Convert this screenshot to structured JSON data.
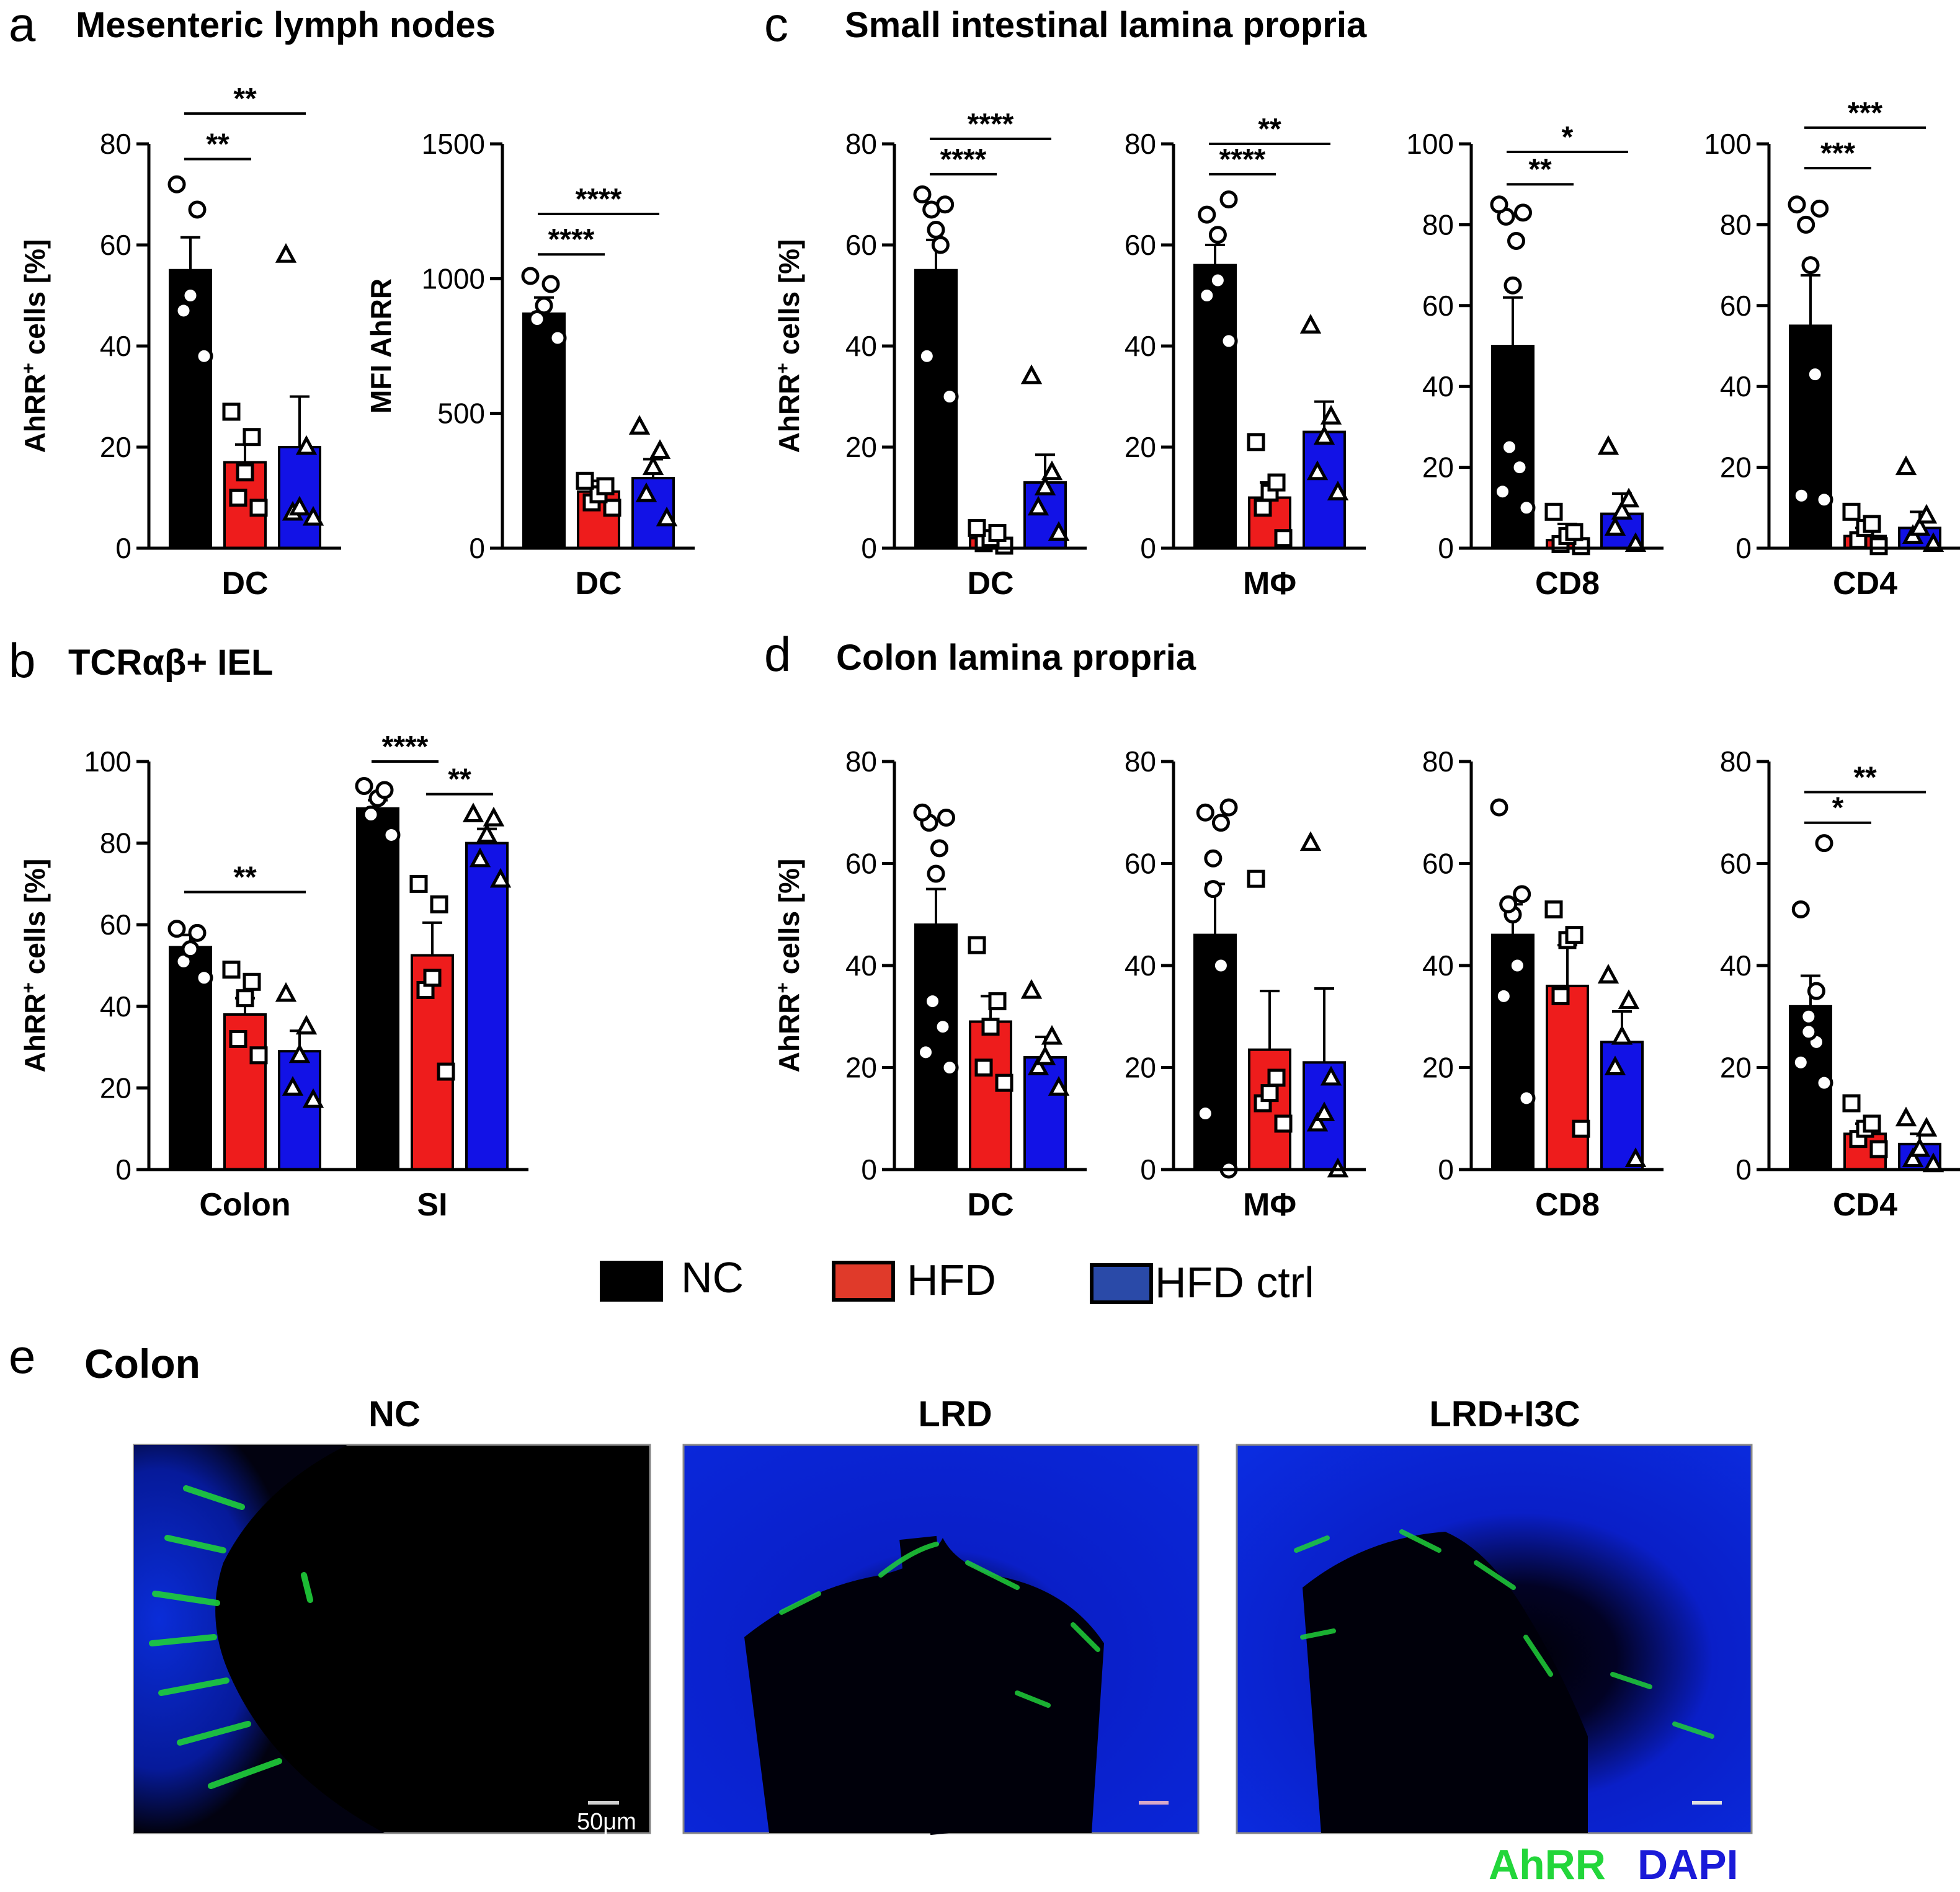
{
  "colors": {
    "NC": "#000000",
    "HFD": "#ee1c1c",
    "HFD_ctrl": "#1212e6",
    "AhRR": "#22d63a",
    "DAPI": "#1a1ad8",
    "background": "#ffffff"
  },
  "panels": {
    "a": {
      "letter": "a",
      "title": "Mesenteric lymph nodes"
    },
    "b": {
      "letter": "b",
      "title": "TCRαβ+ IEL"
    },
    "c": {
      "letter": "c",
      "title": "Small intestinal lamina propria"
    },
    "d": {
      "letter": "d",
      "title": "Colon lamina propria"
    },
    "e": {
      "letter": "e",
      "title": "Colon"
    }
  },
  "legend": [
    {
      "label": "NC",
      "color": "#000000"
    },
    {
      "label": "HFD",
      "color": "#e03a2a"
    },
    {
      "label": "HFD ctrl",
      "color": "#2a4aa8"
    }
  ],
  "micrographs": {
    "titles": [
      "NC",
      "LRD",
      "LRD+I3C"
    ],
    "scale_bar": "50μm",
    "stain_labels": {
      "green": "AhRR",
      "blue": "DAPI"
    }
  },
  "chart_data": [
    {
      "id": "a1",
      "type": "bar",
      "panel": "a",
      "ylabel": "AhRR+ cells [%]",
      "ylim": [
        0,
        80
      ],
      "yticks": [
        "0",
        "20",
        "40",
        "60",
        "80"
      ],
      "groups": [
        {
          "label": "DC",
          "bars": [
            {
              "series": "NC",
              "mean": 55,
              "sem": 6.5,
              "points": [
                38,
                47,
                50,
                67,
                72
              ]
            },
            {
              "series": "HFD",
              "mean": 17,
              "sem": 3.5,
              "points": [
                8,
                10,
                15,
                22,
                27
              ]
            },
            {
              "series": "HFD ctrl",
              "mean": 20,
              "sem": 10,
              "points": [
                6,
                7,
                8,
                20,
                58
              ]
            }
          ]
        }
      ],
      "significance": [
        {
          "text": "**",
          "from": [
            0,
            0
          ],
          "to": [
            0,
            2
          ],
          "y": 86
        },
        {
          "text": "**",
          "from": [
            0,
            0
          ],
          "to": [
            0,
            1
          ],
          "y": 77
        }
      ]
    },
    {
      "id": "a2",
      "type": "bar",
      "panel": "a",
      "ylabel": "MFI AhRR",
      "ylim": [
        0,
        1500
      ],
      "yticks": [
        "0",
        "500",
        "1000",
        "1500"
      ],
      "groups": [
        {
          "label": "DC",
          "bars": [
            {
              "series": "NC",
              "mean": 870,
              "sem": 60,
              "points": [
                780,
                850,
                900,
                980,
                1010
              ]
            },
            {
              "series": "HFD",
              "mean": 210,
              "sem": 40,
              "points": [
                150,
                170,
                200,
                230,
                250
              ]
            },
            {
              "series": "HFD ctrl",
              "mean": 260,
              "sem": 70,
              "points": [
                110,
                200,
                300,
                360,
                450
              ]
            }
          ]
        }
      ],
      "significance": [
        {
          "text": "****",
          "from": [
            0,
            0
          ],
          "to": [
            0,
            2
          ],
          "y": 1240
        },
        {
          "text": "****",
          "from": [
            0,
            0
          ],
          "to": [
            0,
            1
          ],
          "y": 1090
        }
      ]
    },
    {
      "id": "b1",
      "type": "bar",
      "panel": "b",
      "ylabel": "AhRR+ cells [%]",
      "ylim": [
        0,
        100
      ],
      "yticks": [
        "0",
        "20",
        "40",
        "60",
        "80",
        "100"
      ],
      "groups": [
        {
          "label": "Colon",
          "bars": [
            {
              "series": "NC",
              "mean": 54.5,
              "sem": 3,
              "points": [
                47,
                51,
                54,
                58,
                59
              ]
            },
            {
              "series": "HFD",
              "mean": 38,
              "sem": 4,
              "points": [
                28,
                32,
                42,
                46,
                49
              ]
            },
            {
              "series": "HFD ctrl",
              "mean": 29,
              "sem": 5,
              "points": [
                17,
                20,
                28,
                35,
                43
              ]
            }
          ]
        },
        {
          "label": "SI",
          "bars": [
            {
              "series": "NC",
              "mean": 88.5,
              "sem": 2,
              "points": [
                82,
                87,
                91,
                93,
                94
              ]
            },
            {
              "series": "HFD",
              "mean": 52.5,
              "sem": 8,
              "points": [
                24,
                44,
                47,
                65,
                70
              ]
            },
            {
              "series": "HFD ctrl",
              "mean": 80,
              "sem": 3.5,
              "points": [
                71,
                76,
                82,
                86,
                87
              ]
            }
          ]
        }
      ],
      "significance": [
        {
          "text": "**",
          "from": [
            0,
            0
          ],
          "to": [
            0,
            2
          ],
          "y": 68
        },
        {
          "text": "****",
          "from": [
            1,
            0
          ],
          "to": [
            1,
            1
          ],
          "y": 100
        },
        {
          "text": "**",
          "from": [
            1,
            1
          ],
          "to": [
            1,
            2
          ],
          "y": 92
        }
      ]
    },
    {
      "id": "c1",
      "type": "bar",
      "panel": "c",
      "ylabel": "AhRR+ cells [%]",
      "ylim": [
        0,
        80
      ],
      "yticks": [
        "0",
        "20",
        "40",
        "60",
        "80"
      ],
      "groups": [
        {
          "label": "DC",
          "bars": [
            {
              "series": "NC",
              "mean": 55,
              "sem": 6,
              "points": [
                30,
                38,
                60,
                63,
                67,
                68,
                70
              ]
            },
            {
              "series": "HFD",
              "mean": 2,
              "sem": 1,
              "points": [
                0.5,
                1,
                2,
                3,
                4
              ]
            },
            {
              "series": "HFD ctrl",
              "mean": 13,
              "sem": 5.5,
              "points": [
                3,
                8,
                12,
                15,
                34
              ]
            }
          ]
        }
      ],
      "significance": [
        {
          "text": "****",
          "from": [
            0,
            0
          ],
          "to": [
            0,
            2
          ],
          "y": 81
        },
        {
          "text": "****",
          "from": [
            0,
            0
          ],
          "to": [
            0,
            1
          ],
          "y": 74
        }
      ]
    },
    {
      "id": "c2",
      "type": "bar",
      "panel": "c",
      "ylabel": "",
      "ylim": [
        0,
        80
      ],
      "yticks": [
        "0",
        "20",
        "40",
        "60",
        "80"
      ],
      "groups": [
        {
          "label": "MΦ",
          "bars": [
            {
              "series": "NC",
              "mean": 56,
              "sem": 4,
              "points": [
                41,
                50,
                53,
                62,
                66,
                69
              ]
            },
            {
              "series": "HFD",
              "mean": 10,
              "sem": 3,
              "points": [
                2,
                8,
                11,
                13,
                21
              ]
            },
            {
              "series": "HFD ctrl",
              "mean": 23,
              "sem": 6,
              "points": [
                11,
                15,
                22,
                26,
                44
              ]
            }
          ]
        }
      ],
      "significance": [
        {
          "text": "**",
          "from": [
            0,
            0
          ],
          "to": [
            0,
            2
          ],
          "y": 80
        },
        {
          "text": "****",
          "from": [
            0,
            0
          ],
          "to": [
            0,
            1
          ],
          "y": 74
        }
      ]
    },
    {
      "id": "c3",
      "type": "bar",
      "panel": "c",
      "ylabel": "",
      "ylim": [
        0,
        100
      ],
      "yticks": [
        "0",
        "20",
        "40",
        "60",
        "80",
        "100"
      ],
      "groups": [
        {
          "label": "CD8",
          "bars": [
            {
              "series": "NC",
              "mean": 50,
              "sem": 12,
              "points": [
                10,
                14,
                20,
                25,
                65,
                76,
                82,
                83,
                85
              ]
            },
            {
              "series": "HFD",
              "mean": 2,
              "sem": 4,
              "points": [
                0.5,
                1,
                3,
                4,
                9
              ]
            },
            {
              "series": "HFD ctrl",
              "mean": 8.5,
              "sem": 5,
              "points": [
                1,
                5,
                9,
                12,
                25
              ]
            }
          ]
        }
      ],
      "significance": [
        {
          "text": "*",
          "from": [
            0,
            0
          ],
          "to": [
            0,
            2
          ],
          "y": 98
        },
        {
          "text": "**",
          "from": [
            0,
            0
          ],
          "to": [
            0,
            1
          ],
          "y": 90
        }
      ]
    },
    {
      "id": "c4",
      "type": "bar",
      "panel": "c",
      "ylabel": "",
      "ylim": [
        0,
        100
      ],
      "yticks": [
        "0",
        "20",
        "40",
        "60",
        "80",
        "100"
      ],
      "groups": [
        {
          "label": "CD4",
          "bars": [
            {
              "series": "NC",
              "mean": 55,
              "sem": 12.5,
              "points": [
                12,
                13,
                43,
                70,
                80,
                84,
                85
              ]
            },
            {
              "series": "HFD",
              "mean": 3,
              "sem": 2,
              "points": [
                0.5,
                2,
                5,
                6,
                9
              ]
            },
            {
              "series": "HFD ctrl",
              "mean": 5,
              "sem": 4,
              "points": [
                1,
                3,
                5,
                8,
                20
              ]
            }
          ]
        }
      ],
      "significance": [
        {
          "text": "***",
          "from": [
            0,
            0
          ],
          "to": [
            0,
            2
          ],
          "y": 104
        },
        {
          "text": "***",
          "from": [
            0,
            0
          ],
          "to": [
            0,
            1
          ],
          "y": 94
        }
      ]
    },
    {
      "id": "d1",
      "type": "bar",
      "panel": "d",
      "ylabel": "AhRR+ cells [%]",
      "ylim": [
        0,
        80
      ],
      "yticks": [
        "0",
        "20",
        "40",
        "60",
        "80"
      ],
      "groups": [
        {
          "label": "DC",
          "bars": [
            {
              "series": "NC",
              "mean": 48,
              "sem": 7,
              "points": [
                20,
                23,
                28,
                33,
                58,
                63,
                68,
                69,
                70
              ]
            },
            {
              "series": "HFD",
              "mean": 29,
              "sem": 5,
              "points": [
                17,
                20,
                28,
                33,
                44
              ]
            },
            {
              "series": "HFD ctrl",
              "mean": 22,
              "sem": 4,
              "points": [
                16,
                20,
                22,
                26,
                35
              ]
            }
          ]
        }
      ],
      "significance": []
    },
    {
      "id": "d2",
      "type": "bar",
      "panel": "d",
      "ylabel": "",
      "ylim": [
        0,
        80
      ],
      "yticks": [
        "0",
        "20",
        "40",
        "60",
        "80"
      ],
      "groups": [
        {
          "label": "MΦ",
          "bars": [
            {
              "series": "NC",
              "mean": 46,
              "sem": 10,
              "points": [
                0,
                11,
                40,
                55,
                61,
                68,
                70,
                71
              ]
            },
            {
              "series": "HFD",
              "mean": 23.5,
              "sem": 11.5,
              "points": [
                9,
                13,
                15,
                18,
                57
              ]
            },
            {
              "series": "HFD ctrl",
              "mean": 21,
              "sem": 14.5,
              "points": [
                0,
                9,
                11,
                18,
                64
              ]
            }
          ]
        }
      ],
      "significance": []
    },
    {
      "id": "d3",
      "type": "bar",
      "panel": "d",
      "ylabel": "",
      "ylim": [
        0,
        80
      ],
      "yticks": [
        "0",
        "20",
        "40",
        "60",
        "80"
      ],
      "groups": [
        {
          "label": "CD8",
          "bars": [
            {
              "series": "NC",
              "mean": 46,
              "sem": 6,
              "points": [
                14,
                34,
                40,
                50,
                52,
                54,
                71
              ]
            },
            {
              "series": "HFD",
              "mean": 36,
              "sem": 8,
              "points": [
                8,
                34,
                45,
                46,
                51
              ]
            },
            {
              "series": "HFD ctrl",
              "mean": 25,
              "sem": 6,
              "points": [
                2,
                20,
                26,
                33,
                38
              ]
            }
          ]
        }
      ],
      "significance": []
    },
    {
      "id": "d4",
      "type": "bar",
      "panel": "d",
      "ylabel": "",
      "ylim": [
        0,
        80
      ],
      "yticks": [
        "0",
        "20",
        "40",
        "60",
        "80"
      ],
      "groups": [
        {
          "label": "CD4",
          "bars": [
            {
              "series": "NC",
              "mean": 32,
              "sem": 6,
              "points": [
                17,
                21,
                25,
                27,
                30,
                35,
                51,
                64
              ]
            },
            {
              "series": "HFD",
              "mean": 7,
              "sem": 2,
              "points": [
                4,
                6,
                8,
                9,
                13
              ]
            },
            {
              "series": "HFD ctrl",
              "mean": 5,
              "sem": 2,
              "points": [
                1,
                2,
                4,
                8,
                10
              ]
            }
          ]
        }
      ],
      "significance": [
        {
          "text": "**",
          "from": [
            0,
            0
          ],
          "to": [
            0,
            2
          ],
          "y": 74
        },
        {
          "text": "*",
          "from": [
            0,
            0
          ],
          "to": [
            0,
            1
          ],
          "y": 68
        }
      ]
    }
  ]
}
